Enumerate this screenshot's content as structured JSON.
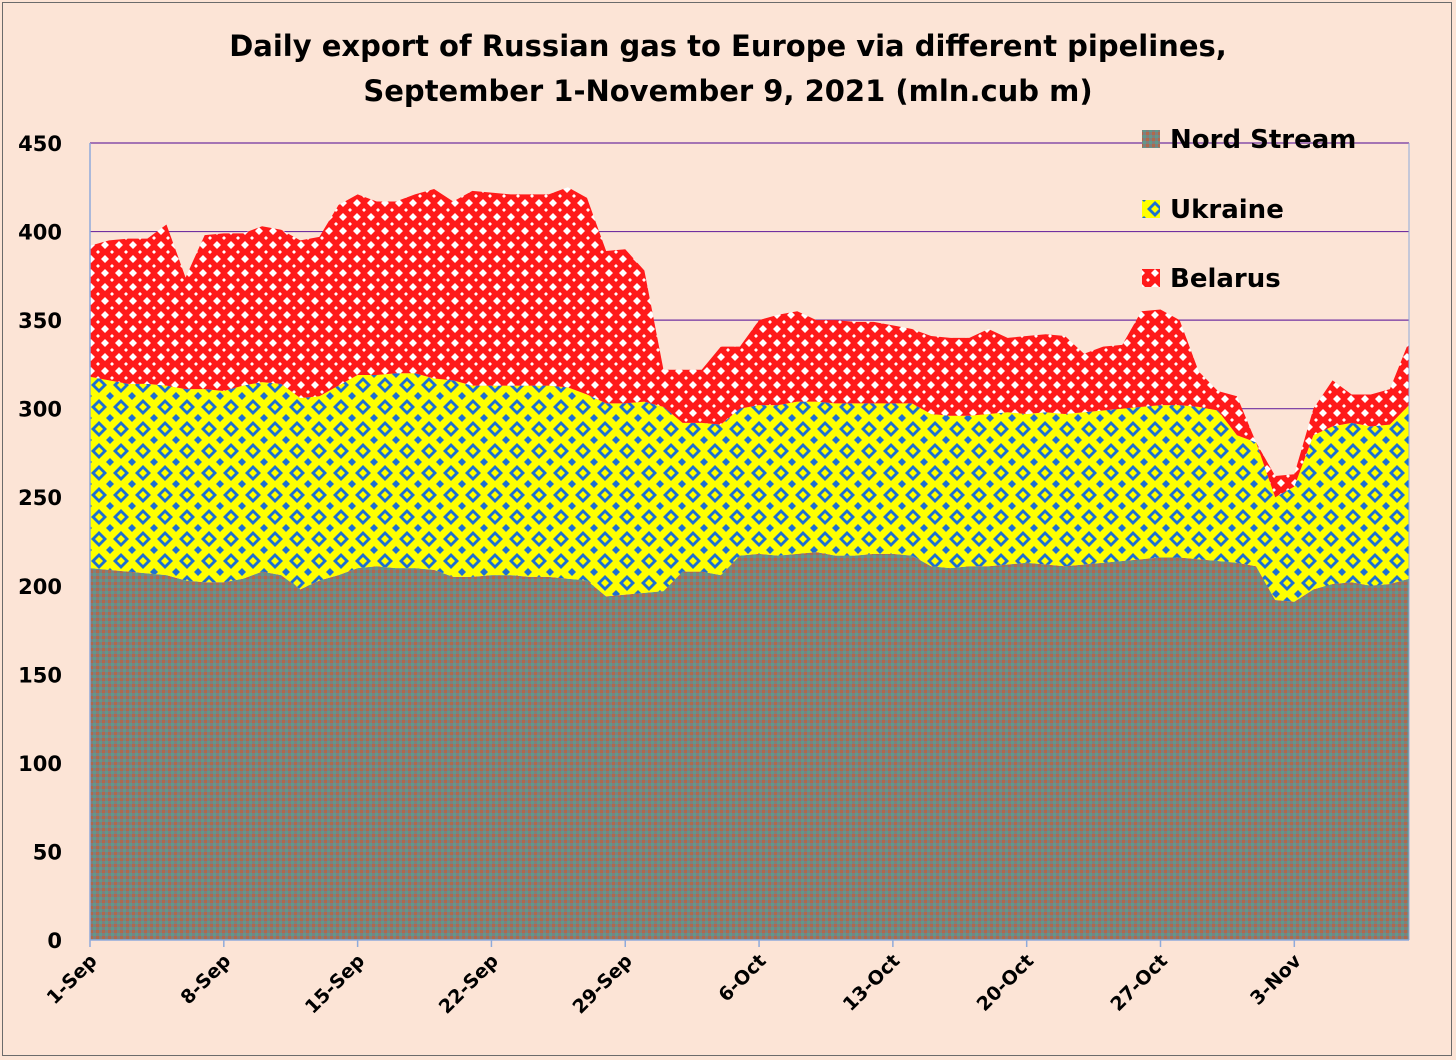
{
  "chart_data": {
    "type": "area",
    "stacked": true,
    "title_line1": "Daily export of Russian gas to Europe via different pipelines,",
    "title_line2": "September 1-November 9, 2021 (mln.cub m)",
    "xlabel": "",
    "ylabel": "",
    "ylim": [
      0,
      450
    ],
    "yticks": [
      0,
      50,
      100,
      150,
      200,
      250,
      300,
      350,
      400,
      450
    ],
    "x_tick_labels": [
      "1-Sep",
      "8-Sep",
      "15-Sep",
      "22-Sep",
      "29-Sep",
      "6-Oct",
      "13-Oct",
      "20-Oct",
      "27-Oct",
      "3-Nov"
    ],
    "x_tick_day_index": [
      0,
      7,
      14,
      21,
      28,
      35,
      42,
      49,
      56,
      63
    ],
    "x": [
      "1-Sep",
      "2-Sep",
      "3-Sep",
      "4-Sep",
      "5-Sep",
      "6-Sep",
      "7-Sep",
      "8-Sep",
      "9-Sep",
      "10-Sep",
      "11-Sep",
      "12-Sep",
      "13-Sep",
      "14-Sep",
      "15-Sep",
      "16-Sep",
      "17-Sep",
      "18-Sep",
      "19-Sep",
      "20-Sep",
      "21-Sep",
      "22-Sep",
      "23-Sep",
      "24-Sep",
      "25-Sep",
      "26-Sep",
      "27-Sep",
      "28-Sep",
      "29-Sep",
      "30-Sep",
      "1-Oct",
      "2-Oct",
      "3-Oct",
      "4-Oct",
      "5-Oct",
      "6-Oct",
      "7-Oct",
      "8-Oct",
      "9-Oct",
      "10-Oct",
      "11-Oct",
      "12-Oct",
      "13-Oct",
      "14-Oct",
      "15-Oct",
      "16-Oct",
      "17-Oct",
      "18-Oct",
      "19-Oct",
      "20-Oct",
      "21-Oct",
      "22-Oct",
      "23-Oct",
      "24-Oct",
      "25-Oct",
      "26-Oct",
      "27-Oct",
      "28-Oct",
      "29-Oct",
      "30-Oct",
      "31-Oct",
      "1-Nov",
      "2-Nov",
      "3-Nov",
      "4-Nov",
      "5-Nov",
      "6-Nov",
      "7-Nov",
      "8-Nov",
      "9-Nov"
    ],
    "grid": "horizontal",
    "legend_position": "top-right",
    "series": [
      {
        "name": "Nord Stream",
        "color": "#7f7f7f",
        "values": [
          210,
          209,
          208,
          207,
          206,
          203,
          202,
          202,
          204,
          208,
          206,
          198,
          203,
          206,
          210,
          211,
          210,
          210,
          209,
          205,
          205,
          206,
          206,
          205,
          205,
          204,
          203,
          194,
          195,
          196,
          197,
          208,
          208,
          206,
          217,
          218,
          217,
          218,
          219,
          217,
          217,
          218,
          218,
          217,
          211,
          210,
          211,
          211,
          212,
          213,
          212,
          211,
          212,
          213,
          214,
          215,
          216,
          216,
          215,
          214,
          213,
          211,
          192,
          191,
          198,
          201,
          202,
          200,
          201,
          204
        ]
      },
      {
        "name": "Ukraine",
        "color": "#ffff00",
        "values": [
          108,
          107,
          106,
          107,
          107,
          108,
          109,
          108,
          109,
          107,
          108,
          108,
          104,
          107,
          109,
          108,
          110,
          110,
          108,
          111,
          108,
          107,
          107,
          108,
          108,
          108,
          105,
          109,
          108,
          108,
          104,
          84,
          84,
          85,
          83,
          84,
          85,
          86,
          85,
          86,
          86,
          85,
          85,
          86,
          86,
          86,
          85,
          86,
          86,
          84,
          86,
          86,
          86,
          86,
          86,
          86,
          86,
          86,
          86,
          85,
          72,
          70,
          58,
          65,
          87,
          89,
          90,
          90,
          90,
          98
        ]
      },
      {
        "name": "Belarus",
        "color": "#ff0000",
        "values": [
          74,
          79,
          82,
          82,
          91,
          63,
          87,
          89,
          86,
          88,
          87,
          89,
          90,
          102,
          102,
          98,
          97,
          101,
          107,
          101,
          110,
          109,
          108,
          108,
          108,
          113,
          111,
          86,
          87,
          74,
          21,
          30,
          30,
          44,
          35,
          48,
          51,
          51,
          46,
          47,
          46,
          46,
          44,
          42,
          44,
          44,
          44,
          48,
          42,
          44,
          44,
          44,
          33,
          36,
          36,
          54,
          54,
          48,
          20,
          11,
          22,
          0,
          12,
          7,
          15,
          26,
          16,
          18,
          20,
          36
        ]
      }
    ]
  }
}
